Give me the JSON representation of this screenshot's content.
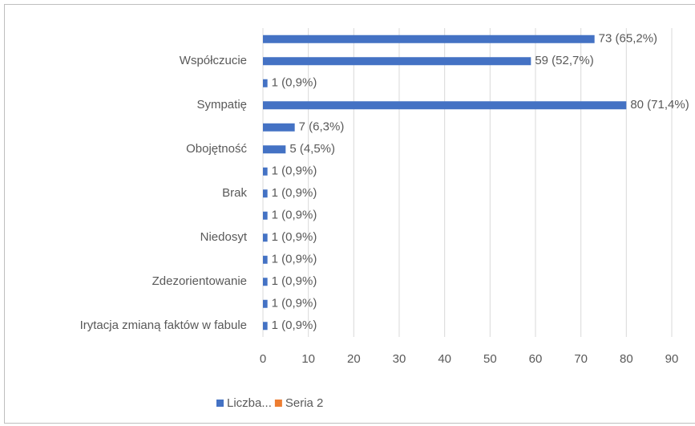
{
  "chart_data": {
    "type": "hbar",
    "categories": [
      null,
      "Współczucie",
      null,
      "Sympatię",
      null,
      "Obojętność",
      null,
      "Brak",
      null,
      "Niedosyt",
      null,
      "Zdezorientowanie",
      null,
      "Irytacja zmianą faktów w fabule"
    ],
    "series": [
      {
        "name": "Liczba...",
        "color": "#4472c4",
        "values": [
          73,
          59,
          1,
          80,
          7,
          5,
          1,
          1,
          1,
          1,
          1,
          1,
          1,
          1
        ],
        "value_labels": [
          "73 (65,2%)",
          "59 (52,7%)",
          "1 (0,9%)",
          "80 (71,4%)",
          "7 (6,3%)",
          "5 (4,5%)",
          "1 (0,9%)",
          "1 (0,9%)",
          "1 (0,9%)",
          "1 (0,9%)",
          "1 (0,9%)",
          "1 (0,9%)",
          "1 (0,9%)",
          "1 (0,9%)"
        ]
      },
      {
        "name": "Seria 2",
        "color": "#ed7d31",
        "values": [
          null,
          null,
          null,
          null,
          null,
          null,
          null,
          null,
          null,
          null,
          null,
          null,
          null,
          null
        ]
      }
    ],
    "xlim": [
      0,
      90
    ],
    "xticks": [
      0,
      10,
      20,
      30,
      40,
      50,
      60,
      70,
      80,
      90
    ],
    "grid": true
  }
}
